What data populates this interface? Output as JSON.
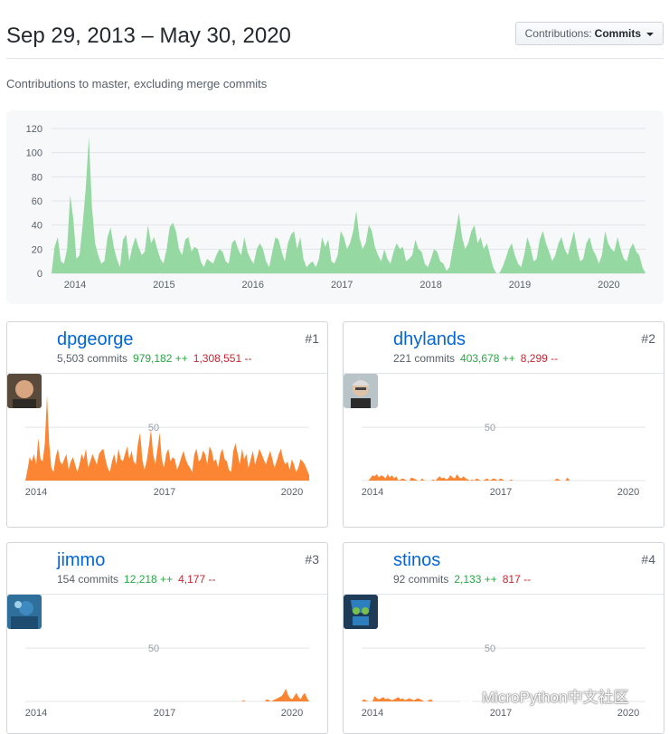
{
  "header": {
    "date_range": "Sep 29, 2013 – May 30, 2020",
    "contrib_prefix": "Contributions:",
    "contrib_value": "Commits"
  },
  "subtitle": "Contributions to master, excluding merge commits",
  "colors": {
    "main_area": "#96d8a2",
    "user_area": "#fb8532",
    "link": "#0366d6",
    "add": "#28a745",
    "del": "#cb2431"
  },
  "contributors": [
    {
      "rank": "#1",
      "username": "dpgeorge",
      "commits": "5,503 commits",
      "additions": "979,182 ++",
      "deletions": "1,308,551 --",
      "avatar_icon": "avatar-dpgeorge"
    },
    {
      "rank": "#2",
      "username": "dhylands",
      "commits": "221 commits",
      "additions": "403,678 ++",
      "deletions": "8,299 --",
      "avatar_icon": "avatar-dhylands"
    },
    {
      "rank": "#3",
      "username": "jimmo",
      "commits": "154 commits",
      "additions": "12,218 ++",
      "deletions": "4,177 --",
      "avatar_icon": "avatar-jimmo"
    },
    {
      "rank": "#4",
      "username": "stinos",
      "commits": "92 commits",
      "additions": "2,133 ++",
      "deletions": "817 --",
      "avatar_icon": "avatar-stinos"
    }
  ],
  "watermark": "MicroPython中文社区",
  "chart_data": [
    {
      "type": "area",
      "series": [
        {
          "values": [
            0,
            22,
            30,
            10,
            8,
            20,
            65,
            45,
            12,
            15,
            40,
            70,
            113,
            55,
            25,
            15,
            8,
            10,
            30,
            38,
            22,
            12,
            5,
            28,
            32,
            10,
            22,
            30,
            22,
            15,
            18,
            40,
            25,
            30,
            20,
            12,
            8,
            20,
            38,
            42,
            35,
            20,
            15,
            28,
            30,
            18,
            22,
            20,
            10,
            5,
            12,
            10,
            8,
            15,
            20,
            18,
            10,
            8,
            25,
            28,
            20,
            15,
            30,
            18,
            12,
            8,
            20,
            25,
            20,
            10,
            5,
            18,
            30,
            28,
            18,
            10,
            25,
            32,
            35,
            20,
            30,
            12,
            5,
            8,
            10,
            5,
            12,
            30,
            22,
            28,
            10,
            8,
            15,
            35,
            30,
            20,
            25,
            35,
            52,
            30,
            20,
            25,
            40,
            35,
            22,
            15,
            10,
            20,
            12,
            8,
            18,
            25,
            20,
            22,
            10,
            12,
            15,
            28,
            20,
            18,
            8,
            5,
            12,
            20,
            18,
            10,
            8,
            2,
            5,
            20,
            35,
            50,
            30,
            20,
            25,
            35,
            40,
            25,
            30,
            20,
            25,
            15,
            5,
            0,
            0,
            5,
            12,
            20,
            25,
            15,
            8,
            5,
            15,
            30,
            22,
            10,
            12,
            28,
            35,
            25,
            18,
            10,
            15,
            25,
            30,
            20,
            15,
            25,
            35,
            20,
            10,
            12,
            25,
            30,
            20,
            15,
            8,
            15,
            35,
            25,
            20,
            18,
            30,
            20,
            12,
            10,
            20,
            25,
            18,
            15,
            5,
            0
          ]
        }
      ],
      "x_ticks": [
        "2014",
        "2015",
        "2016",
        "2017",
        "2018",
        "2019",
        "2020"
      ],
      "y_ticks": [
        "0",
        "20",
        "40",
        "60",
        "80",
        "100",
        "120"
      ],
      "ylim": [
        0,
        120
      ],
      "grid": true
    },
    {
      "type": "area",
      "series": [
        {
          "values": [
            0,
            10,
            22,
            18,
            25,
            15,
            40,
            20,
            18,
            35,
            80,
            35,
            12,
            8,
            22,
            30,
            18,
            15,
            20,
            25,
            10,
            18,
            22,
            15,
            8,
            15,
            25,
            20,
            30,
            12,
            18,
            25,
            20,
            15,
            25,
            28,
            30,
            20,
            12,
            8,
            18,
            25,
            15,
            30,
            20,
            18,
            25,
            32,
            20,
            28,
            18,
            15,
            35,
            45,
            20,
            10,
            18,
            32,
            48,
            25,
            15,
            30,
            45,
            20,
            12,
            25,
            30,
            18,
            22,
            20,
            10,
            15,
            22,
            28,
            20,
            15,
            12,
            8,
            25,
            30,
            18,
            20,
            28,
            25,
            15,
            32,
            28,
            18,
            20,
            12,
            25,
            30,
            20,
            18,
            10,
            8,
            28,
            35,
            25,
            15,
            30,
            20,
            25,
            12,
            20,
            28,
            15,
            22,
            30,
            25,
            20,
            15,
            22,
            28,
            20,
            12,
            18,
            25,
            30,
            20,
            15,
            18,
            10,
            20,
            15,
            8,
            12,
            20,
            18,
            15,
            10,
            5
          ]
        }
      ],
      "x_ticks": [
        "2014",
        "2017",
        "2020"
      ],
      "y_ticks": [
        "50"
      ],
      "ylim": [
        0,
        90
      ]
    },
    {
      "type": "area",
      "series": [
        {
          "values": [
            0,
            0,
            0,
            0,
            2,
            5,
            4,
            6,
            3,
            5,
            4,
            2,
            6,
            3,
            5,
            2,
            4,
            0,
            1,
            2,
            1,
            0,
            0,
            3,
            2,
            1,
            0,
            0,
            2,
            0,
            0,
            0,
            0,
            1,
            0,
            2,
            4,
            2,
            3,
            1,
            2,
            5,
            3,
            2,
            6,
            3,
            2,
            4,
            2,
            1,
            0,
            1,
            0,
            2,
            1,
            0,
            0,
            1,
            2,
            0,
            1,
            2,
            1,
            0,
            2,
            1,
            0,
            0,
            0,
            1,
            0,
            0,
            0,
            0,
            0,
            0,
            0,
            0,
            0,
            0,
            0,
            0,
            0,
            0,
            0,
            0,
            0,
            0,
            0,
            0,
            2,
            1,
            0,
            0,
            0,
            3,
            0,
            0,
            0,
            0,
            0,
            0,
            0,
            0,
            0,
            0,
            0,
            0,
            0,
            0,
            0,
            0,
            0,
            0,
            0,
            0,
            0,
            0,
            0,
            0,
            0,
            0,
            0,
            0,
            0,
            0,
            0,
            0,
            0,
            0,
            0,
            0
          ]
        }
      ],
      "x_ticks": [
        "2014",
        "2017",
        "2020"
      ],
      "y_ticks": [
        "50"
      ],
      "ylim": [
        0,
        90
      ]
    },
    {
      "type": "area",
      "series": [
        {
          "values": [
            0,
            0,
            0,
            0,
            0,
            0,
            0,
            0,
            0,
            0,
            0,
            0,
            0,
            0,
            0,
            0,
            0,
            0,
            0,
            0,
            0,
            0,
            0,
            0,
            0,
            0,
            0,
            0,
            0,
            0,
            0,
            0,
            0,
            0,
            0,
            0,
            0,
            0,
            0,
            0,
            0,
            0,
            0,
            0,
            0,
            0,
            0,
            0,
            0,
            0,
            0,
            0,
            0,
            0,
            0,
            0,
            0,
            0,
            0,
            0,
            0,
            0,
            0,
            0,
            0,
            0,
            0,
            0,
            0,
            0,
            0,
            0,
            0,
            0,
            0,
            0,
            0,
            0,
            0,
            0,
            0,
            0,
            0,
            0,
            0,
            0,
            0,
            0,
            0,
            0,
            0,
            0,
            0,
            0,
            0,
            0,
            0,
            0,
            0,
            0,
            0,
            0,
            0,
            1,
            0,
            0,
            0,
            0,
            0,
            0,
            0,
            0,
            0,
            0,
            2,
            1,
            0,
            1,
            2,
            3,
            4,
            5,
            8,
            12,
            6,
            3,
            2,
            5,
            8,
            4,
            2,
            6,
            8,
            3,
            0
          ]
        }
      ],
      "x_ticks": [
        "2014",
        "2017",
        "2020"
      ],
      "y_ticks": [
        "50"
      ],
      "ylim": [
        0,
        90
      ]
    },
    {
      "type": "area",
      "series": [
        {
          "values": [
            0,
            2,
            1,
            0,
            0,
            0,
            5,
            3,
            2,
            3,
            4,
            2,
            3,
            2,
            1,
            2,
            3,
            4,
            2,
            3,
            1,
            2,
            3,
            2,
            1,
            2,
            3,
            2,
            1,
            0,
            0,
            1,
            2,
            0,
            0,
            0,
            0,
            0,
            0,
            0,
            0,
            0,
            0,
            0,
            0,
            0,
            0,
            0,
            0,
            0,
            0,
            0,
            0,
            0,
            0,
            0,
            0,
            0,
            0,
            0,
            0,
            0,
            0,
            0,
            0,
            0,
            0,
            0,
            0,
            0,
            0,
            0,
            0,
            0,
            0,
            0,
            0,
            0,
            0,
            0,
            0,
            0,
            0,
            0,
            0,
            0,
            0,
            0,
            0,
            0,
            0,
            0,
            0,
            0,
            0,
            0,
            0,
            0,
            0,
            0,
            0,
            0,
            0,
            0,
            0,
            0,
            0,
            0,
            0,
            0,
            0,
            0,
            0,
            0,
            0,
            0,
            0,
            0,
            0,
            0,
            0,
            0,
            0,
            0,
            0,
            0,
            0,
            0,
            0,
            0,
            0,
            0
          ]
        }
      ],
      "x_ticks": [
        "2014",
        "2017",
        "2020"
      ],
      "y_ticks": [
        "50"
      ],
      "ylim": [
        0,
        90
      ]
    }
  ]
}
